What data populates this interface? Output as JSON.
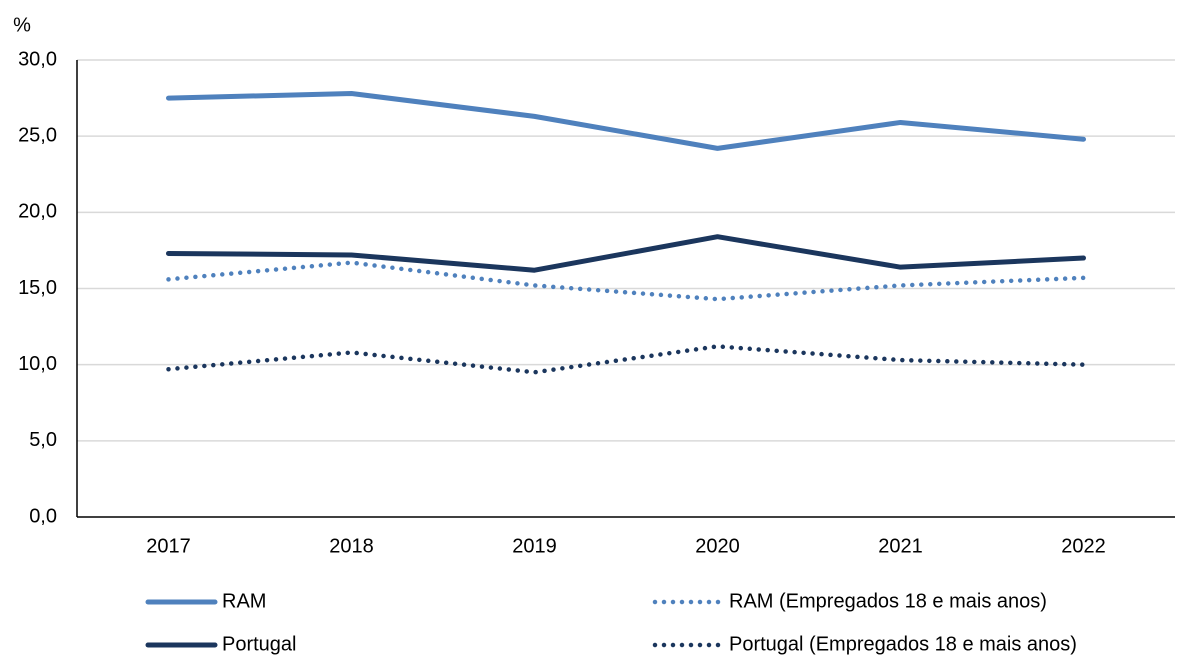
{
  "chart_data": {
    "type": "line",
    "y_label": "%",
    "categories": [
      "2017",
      "2018",
      "2019",
      "2020",
      "2021",
      "2022"
    ],
    "series": [
      {
        "name": "RAM",
        "color": "#4f81bd",
        "line_style": "solid",
        "values": [
          27.5,
          27.8,
          26.3,
          24.2,
          25.9,
          24.8
        ]
      },
      {
        "name": "RAM (Empregados 18 e mais anos)",
        "color": "#4f81bd",
        "line_style": "dotted",
        "values": [
          15.6,
          16.7,
          15.2,
          14.3,
          15.2,
          15.7
        ]
      },
      {
        "name": "Portugal",
        "color": "#1b365d",
        "line_style": "solid",
        "values": [
          17.3,
          17.2,
          16.2,
          18.4,
          16.4,
          17.0
        ]
      },
      {
        "name": "Portugal (Empregados 18 e mais anos)",
        "color": "#1b365d",
        "line_style": "dotted",
        "values": [
          9.7,
          10.8,
          9.5,
          11.2,
          10.3,
          10.0
        ]
      }
    ],
    "ylim": [
      0,
      30
    ],
    "yticks": [
      {
        "value": 0,
        "label": "0,0"
      },
      {
        "value": 5,
        "label": "5,0"
      },
      {
        "value": 10,
        "label": "10,0"
      },
      {
        "value": 15,
        "label": "15,0"
      },
      {
        "value": 20,
        "label": "20,0"
      },
      {
        "value": 25,
        "label": "25,0"
      },
      {
        "value": 30,
        "label": "30,0"
      }
    ],
    "grid": true,
    "legend": "bottom"
  }
}
